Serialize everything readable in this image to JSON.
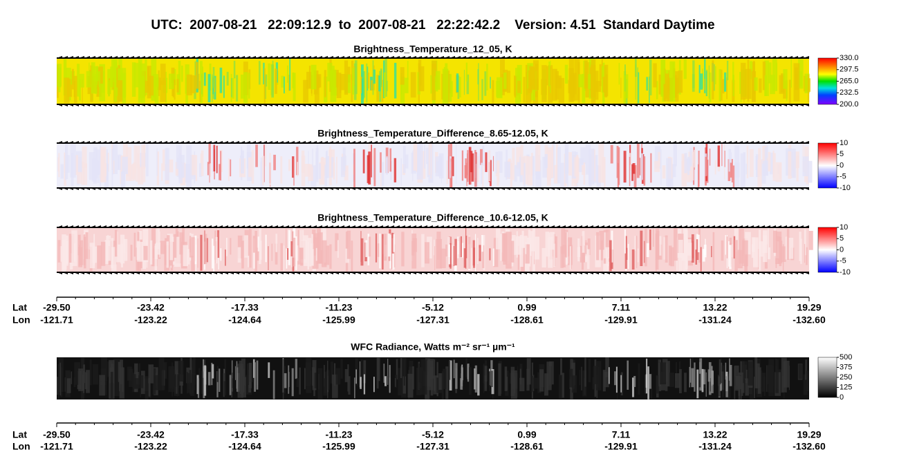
{
  "header": {
    "title": "UTC:  2007-08-21   22:09:12.9  to  2007-08-21   22:22:42.2    Version: 4.51  Standard Daytime"
  },
  "panels": [
    {
      "title": "Brightness_Temperature_12_05, K",
      "lim": [
        200,
        330
      ],
      "ticks": [
        {
          "value": 330,
          "label": "330.0"
        },
        {
          "value": 297.5,
          "label": "297.5"
        },
        {
          "value": 265,
          "label": "265.0"
        },
        {
          "value": 232.5,
          "label": "232.5"
        },
        {
          "value": 200,
          "label": "200.0"
        }
      ]
    },
    {
      "title": "Brightness_Temperature_Difference_8.65-12.05, K",
      "lim": [
        -10,
        10
      ],
      "ticks": [
        10,
        5,
        0,
        -5,
        -10
      ]
    },
    {
      "title": "Brightness_Temperature_Difference_10.6-12.05, K",
      "lim": [
        -10,
        10
      ],
      "ticks": [
        10,
        5,
        0,
        -5,
        -10
      ]
    },
    {
      "title": "WFC Radiance, Watts m⁻² sr⁻¹ µm⁻¹",
      "lim": [
        0,
        500
      ],
      "ticks": [
        500,
        375,
        250,
        125,
        0
      ]
    }
  ],
  "axes": [
    {
      "lat_label": "Lat",
      "lon_label": "Lon",
      "lat": [
        "-29.50",
        "-23.42",
        "-17.33",
        "-11.23",
        "-5.12",
        "0.99",
        "7.11",
        "13.22",
        "19.29"
      ],
      "lon": [
        "-121.71",
        "-123.22",
        "-124.64",
        "-125.99",
        "-127.31",
        "-128.61",
        "-129.91",
        "-131.24",
        "-132.60"
      ]
    },
    {
      "lat_label": "Lat",
      "lon_label": "Lon",
      "lat": [
        "-29.50",
        "-23.42",
        "-17.33",
        "-11.23",
        "-5.12",
        "0.99",
        "7.11",
        "13.22",
        "19.29"
      ],
      "lon": [
        "-121.71",
        "-123.22",
        "-124.64",
        "-125.99",
        "-127.31",
        "-128.61",
        "-129.91",
        "-131.24",
        "-132.60"
      ]
    }
  ]
}
